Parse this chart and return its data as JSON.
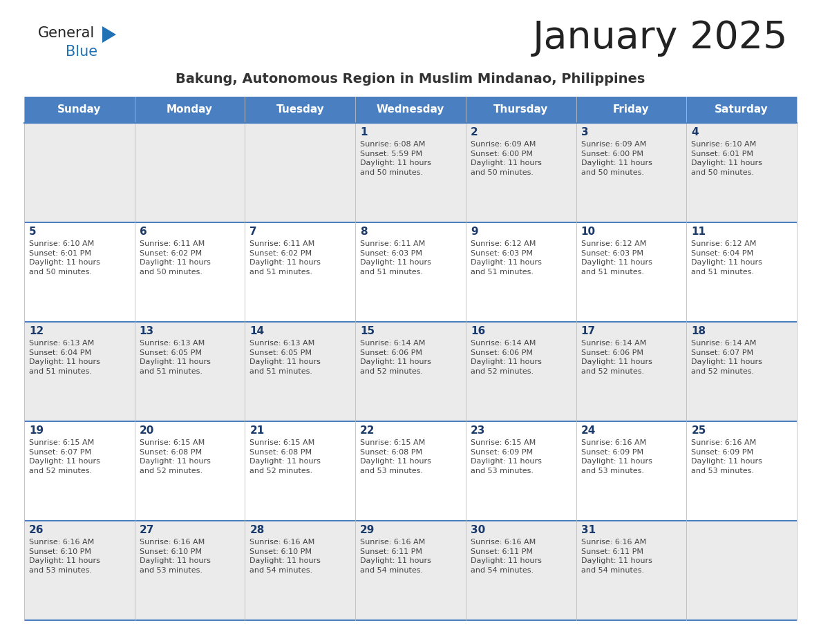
{
  "title": "January 2025",
  "subtitle": "Bakung, Autonomous Region in Muslim Mindanao, Philippines",
  "header_bg_color": "#4A7FC1",
  "header_text_color": "#FFFFFF",
  "cell_bg_row0": "#EBEBEB",
  "cell_bg_row1": "#FFFFFF",
  "cell_bg_row2": "#EBEBEB",
  "cell_bg_row3": "#FFFFFF",
  "cell_bg_row4": "#EBEBEB",
  "cell_text_color": "#444444",
  "day_number_color": "#1a3a6b",
  "border_color": "#4A7FC1",
  "days_of_week": [
    "Sunday",
    "Monday",
    "Tuesday",
    "Wednesday",
    "Thursday",
    "Friday",
    "Saturday"
  ],
  "title_color": "#222222",
  "subtitle_color": "#333333",
  "logo_general_color": "#222222",
  "logo_blue_color": "#2171B5",
  "logo_triangle_color": "#2171B5",
  "calendar_data": [
    [
      {
        "day": "",
        "sunrise": "",
        "sunset": "",
        "daylight_hours": "",
        "daylight_minutes": ""
      },
      {
        "day": "",
        "sunrise": "",
        "sunset": "",
        "daylight_hours": "",
        "daylight_minutes": ""
      },
      {
        "day": "",
        "sunrise": "",
        "sunset": "",
        "daylight_hours": "",
        "daylight_minutes": ""
      },
      {
        "day": "1",
        "sunrise": "6:08 AM",
        "sunset": "5:59 PM",
        "daylight_hours": "11",
        "daylight_minutes": "50"
      },
      {
        "day": "2",
        "sunrise": "6:09 AM",
        "sunset": "6:00 PM",
        "daylight_hours": "11",
        "daylight_minutes": "50"
      },
      {
        "day": "3",
        "sunrise": "6:09 AM",
        "sunset": "6:00 PM",
        "daylight_hours": "11",
        "daylight_minutes": "50"
      },
      {
        "day": "4",
        "sunrise": "6:10 AM",
        "sunset": "6:01 PM",
        "daylight_hours": "11",
        "daylight_minutes": "50"
      }
    ],
    [
      {
        "day": "5",
        "sunrise": "6:10 AM",
        "sunset": "6:01 PM",
        "daylight_hours": "11",
        "daylight_minutes": "50"
      },
      {
        "day": "6",
        "sunrise": "6:11 AM",
        "sunset": "6:02 PM",
        "daylight_hours": "11",
        "daylight_minutes": "50"
      },
      {
        "day": "7",
        "sunrise": "6:11 AM",
        "sunset": "6:02 PM",
        "daylight_hours": "11",
        "daylight_minutes": "51"
      },
      {
        "day": "8",
        "sunrise": "6:11 AM",
        "sunset": "6:03 PM",
        "daylight_hours": "11",
        "daylight_minutes": "51"
      },
      {
        "day": "9",
        "sunrise": "6:12 AM",
        "sunset": "6:03 PM",
        "daylight_hours": "11",
        "daylight_minutes": "51"
      },
      {
        "day": "10",
        "sunrise": "6:12 AM",
        "sunset": "6:03 PM",
        "daylight_hours": "11",
        "daylight_minutes": "51"
      },
      {
        "day": "11",
        "sunrise": "6:12 AM",
        "sunset": "6:04 PM",
        "daylight_hours": "11",
        "daylight_minutes": "51"
      }
    ],
    [
      {
        "day": "12",
        "sunrise": "6:13 AM",
        "sunset": "6:04 PM",
        "daylight_hours": "11",
        "daylight_minutes": "51"
      },
      {
        "day": "13",
        "sunrise": "6:13 AM",
        "sunset": "6:05 PM",
        "daylight_hours": "11",
        "daylight_minutes": "51"
      },
      {
        "day": "14",
        "sunrise": "6:13 AM",
        "sunset": "6:05 PM",
        "daylight_hours": "11",
        "daylight_minutes": "51"
      },
      {
        "day": "15",
        "sunrise": "6:14 AM",
        "sunset": "6:06 PM",
        "daylight_hours": "11",
        "daylight_minutes": "52"
      },
      {
        "day": "16",
        "sunrise": "6:14 AM",
        "sunset": "6:06 PM",
        "daylight_hours": "11",
        "daylight_minutes": "52"
      },
      {
        "day": "17",
        "sunrise": "6:14 AM",
        "sunset": "6:06 PM",
        "daylight_hours": "11",
        "daylight_minutes": "52"
      },
      {
        "day": "18",
        "sunrise": "6:14 AM",
        "sunset": "6:07 PM",
        "daylight_hours": "11",
        "daylight_minutes": "52"
      }
    ],
    [
      {
        "day": "19",
        "sunrise": "6:15 AM",
        "sunset": "6:07 PM",
        "daylight_hours": "11",
        "daylight_minutes": "52"
      },
      {
        "day": "20",
        "sunrise": "6:15 AM",
        "sunset": "6:08 PM",
        "daylight_hours": "11",
        "daylight_minutes": "52"
      },
      {
        "day": "21",
        "sunrise": "6:15 AM",
        "sunset": "6:08 PM",
        "daylight_hours": "11",
        "daylight_minutes": "52"
      },
      {
        "day": "22",
        "sunrise": "6:15 AM",
        "sunset": "6:08 PM",
        "daylight_hours": "11",
        "daylight_minutes": "53"
      },
      {
        "day": "23",
        "sunrise": "6:15 AM",
        "sunset": "6:09 PM",
        "daylight_hours": "11",
        "daylight_minutes": "53"
      },
      {
        "day": "24",
        "sunrise": "6:16 AM",
        "sunset": "6:09 PM",
        "daylight_hours": "11",
        "daylight_minutes": "53"
      },
      {
        "day": "25",
        "sunrise": "6:16 AM",
        "sunset": "6:09 PM",
        "daylight_hours": "11",
        "daylight_minutes": "53"
      }
    ],
    [
      {
        "day": "26",
        "sunrise": "6:16 AM",
        "sunset": "6:10 PM",
        "daylight_hours": "11",
        "daylight_minutes": "53"
      },
      {
        "day": "27",
        "sunrise": "6:16 AM",
        "sunset": "6:10 PM",
        "daylight_hours": "11",
        "daylight_minutes": "53"
      },
      {
        "day": "28",
        "sunrise": "6:16 AM",
        "sunset": "6:10 PM",
        "daylight_hours": "11",
        "daylight_minutes": "54"
      },
      {
        "day": "29",
        "sunrise": "6:16 AM",
        "sunset": "6:11 PM",
        "daylight_hours": "11",
        "daylight_minutes": "54"
      },
      {
        "day": "30",
        "sunrise": "6:16 AM",
        "sunset": "6:11 PM",
        "daylight_hours": "11",
        "daylight_minutes": "54"
      },
      {
        "day": "31",
        "sunrise": "6:16 AM",
        "sunset": "6:11 PM",
        "daylight_hours": "11",
        "daylight_minutes": "54"
      },
      {
        "day": "",
        "sunrise": "",
        "sunset": "",
        "daylight_hours": "",
        "daylight_minutes": ""
      }
    ]
  ]
}
